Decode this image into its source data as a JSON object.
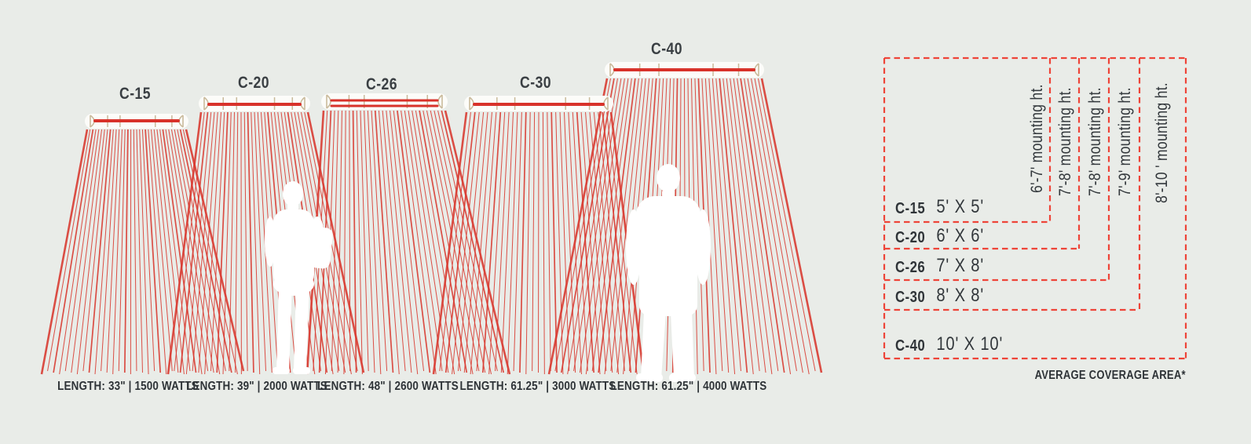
{
  "title_note": "AVERAGE COVERAGE AREA*",
  "colors": {
    "background": "#e9ece8",
    "ray_red": "#d9382e",
    "element_red": "#d8322a",
    "dash_red": "#ee4438",
    "tan": "#c9ba9b",
    "heater_white": "#fcfcf9",
    "silhouette_white": "#ffffff",
    "text_dark": "#33383c"
  },
  "models": [
    {
      "name": "C-15",
      "length_label": "LENGTH: 33\" | 1500 WATTS",
      "coverage": "5' X 5'",
      "mounting": "6'-7' mounting ht."
    },
    {
      "name": "C-20",
      "length_label": "LENGTH: 39\" | 2000 WATTS",
      "coverage": "6' X 6'",
      "mounting": "7'-8' mounting ht."
    },
    {
      "name": "C-26",
      "length_label": "LENGTH: 48\" | 2600 WATTS",
      "coverage": "7' X 8'",
      "mounting": "7'-8' mounting ht."
    },
    {
      "name": "C-30",
      "length_label": "LENGTH: 61.25\" | 3000 WATTS",
      "coverage": "8' X 8'",
      "mounting": "7'-9' mounting ht."
    },
    {
      "name": "C-40",
      "length_label": "LENGTH: 61.25\" | 4000 WATTS",
      "coverage": "10' X 10'",
      "mounting": "8'-10 ' mounting ht."
    }
  ],
  "table": {
    "footnote": "AVERAGE COVERAGE AREA*"
  }
}
